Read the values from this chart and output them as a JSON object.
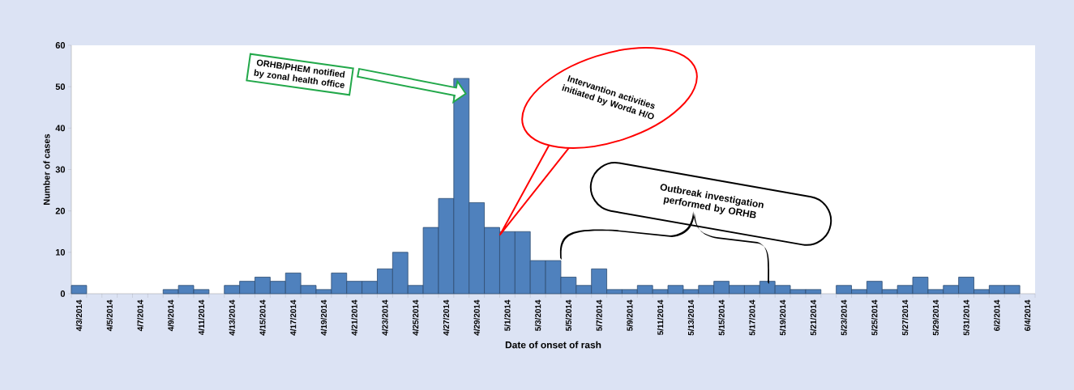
{
  "chart_data": {
    "type": "bar",
    "xlabel": "Date of onset of rash",
    "ylabel": "Number of cases",
    "categories": [
      "4/3/2014",
      null,
      "4/5/2014",
      null,
      "4/7/2014",
      null,
      "4/9/2014",
      null,
      "4/11/2014",
      null,
      "4/13/2014",
      null,
      "4/15/2014",
      null,
      "4/17/2014",
      null,
      "4/19/2014",
      null,
      "4/21/2014",
      null,
      "4/23/2014",
      null,
      "4/25/2014",
      null,
      "4/27/2014",
      null,
      "4/29/2014",
      null,
      "5/1/2014",
      null,
      "5/3/2014",
      null,
      "5/5/2014",
      null,
      "5/7/2014",
      null,
      "5/9/2014",
      null,
      "5/11/2014",
      null,
      "5/13/2014",
      null,
      "5/15/2014",
      null,
      "5/17/2014",
      null,
      "5/19/2014",
      null,
      "5/21/2014",
      null,
      "5/23/2014",
      null,
      "5/25/2014",
      null,
      "5/27/2014",
      null,
      "5/29/2014",
      null,
      "5/31/2014",
      null,
      "6/2/2014",
      null,
      "6/4/2014"
    ],
    "values": [
      2,
      0,
      0,
      0,
      0,
      0,
      1,
      2,
      1,
      0,
      2,
      3,
      4,
      3,
      5,
      2,
      1,
      5,
      3,
      3,
      6,
      10,
      2,
      16,
      23,
      52,
      22,
      16,
      15,
      15,
      8,
      8,
      4,
      2,
      6,
      1,
      1,
      2,
      1,
      2,
      1,
      2,
      3,
      2,
      2,
      3,
      2,
      1,
      1,
      0,
      2,
      1,
      3,
      1,
      2,
      4,
      1,
      2,
      4,
      1,
      2,
      2,
      0
    ],
    "color": "#4f81bd",
    "ylim": [
      0,
      60
    ],
    "yticks": [
      0,
      10,
      20,
      30,
      40,
      50,
      60
    ],
    "annotations": [
      "ORHB/PHEM notified by zonal health office",
      "Intervantion activities initiated by Worda  H/O",
      "Outbreak investigation performed by ORHB"
    ]
  }
}
